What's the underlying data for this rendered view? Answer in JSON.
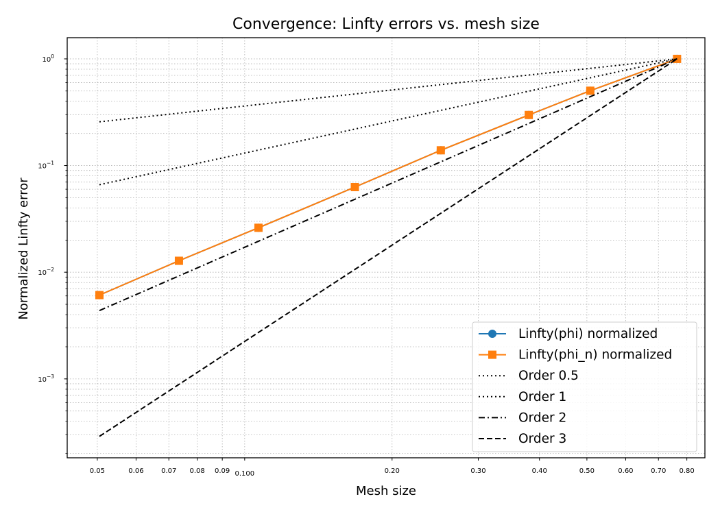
{
  "chart_data": {
    "type": "line",
    "title": "Convergence: Linfty errors vs. mesh size",
    "xlabel": "Mesh size",
    "ylabel": "Normalized Linfty error",
    "xscale": "log",
    "yscale": "log",
    "xlim": [
      0.0434,
      0.871
    ],
    "ylim": [
      0.000182,
      1.58
    ],
    "grid": "both (major and minor), dotted",
    "legend_position": "lower-right",
    "x_ticks": [
      {
        "value": 0.05,
        "label": "0.05"
      },
      {
        "value": 0.06,
        "label": "0.06"
      },
      {
        "value": 0.07,
        "label": "0.07"
      },
      {
        "value": 0.08,
        "label": "0.08"
      },
      {
        "value": 0.09,
        "label": "0.09"
      },
      {
        "value": 0.1,
        "label": "0.100"
      },
      {
        "value": 0.2,
        "label": "0.20"
      },
      {
        "value": 0.3,
        "label": "0.30"
      },
      {
        "value": 0.4,
        "label": "0.40"
      },
      {
        "value": 0.5,
        "label": "0.50"
      },
      {
        "value": 0.6,
        "label": "0.60"
      },
      {
        "value": 0.7,
        "label": "0.70"
      },
      {
        "value": 0.8,
        "label": "0.80"
      }
    ],
    "y_ticks": [
      {
        "value": 0.001,
        "base": "10",
        "exp": "−3"
      },
      {
        "value": 0.01,
        "base": "10",
        "exp": "−2"
      },
      {
        "value": 0.1,
        "base": "10",
        "exp": "−1"
      },
      {
        "value": 1,
        "base": "10",
        "exp": "0"
      }
    ],
    "series": [
      {
        "name": "Linfty(phi) normalized",
        "color": "#1f77b4",
        "style": "solid",
        "marker": "circle",
        "x": [
          0.0505,
          0.0734,
          0.1067,
          0.1679,
          0.2515,
          0.3804,
          0.508,
          0.764
        ],
        "y": [
          0.0061,
          0.0128,
          0.0261,
          0.0628,
          0.139,
          0.298,
          0.503,
          1.0
        ]
      },
      {
        "name": "Linfty(phi_n) normalized",
        "color": "#ff7f0e",
        "style": "solid",
        "marker": "square",
        "x": [
          0.0505,
          0.0734,
          0.1067,
          0.1679,
          0.2515,
          0.3804,
          0.508,
          0.764
        ],
        "y": [
          0.0061,
          0.0128,
          0.0261,
          0.0628,
          0.139,
          0.298,
          0.503,
          1.0
        ]
      },
      {
        "name": "Order 0.5",
        "color": "#000000",
        "style": "dotted",
        "x": [
          0.0505,
          0.764
        ],
        "y": [
          0.257,
          1.0
        ]
      },
      {
        "name": "Order 1",
        "color": "#000000",
        "style": "dotted",
        "x": [
          0.0505,
          0.764
        ],
        "y": [
          0.0661,
          1.0
        ]
      },
      {
        "name": "Order 2",
        "color": "#000000",
        "style": "dashdot",
        "x": [
          0.0505,
          0.764
        ],
        "y": [
          0.00437,
          1.0
        ]
      },
      {
        "name": "Order 3",
        "color": "#000000",
        "style": "dashed",
        "x": [
          0.0505,
          0.764
        ],
        "y": [
          0.000289,
          1.0
        ]
      }
    ]
  }
}
